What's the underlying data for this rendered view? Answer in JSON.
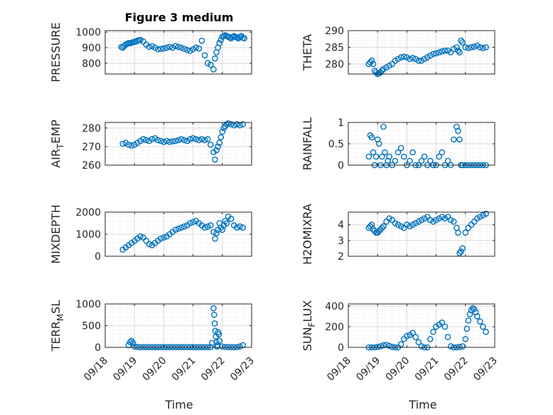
{
  "title": "Figure 3 medium",
  "marker_color": "#0072BD",
  "chart_data": [
    {
      "type": "scatter",
      "id": "pressure",
      "ylabel_parts": [
        "PRESSURE"
      ],
      "xlim": [
        0,
        5
      ],
      "ylim": [
        730,
        1010
      ],
      "yticks": [
        800,
        900,
        1000
      ],
      "x_ticks": [
        "09/18",
        "09/19",
        "09/20",
        "09/21",
        "09/22",
        "09/23"
      ],
      "show_x_ticks": false,
      "x": [
        0.55,
        0.6,
        0.65,
        0.7,
        0.75,
        0.8,
        0.85,
        0.9,
        0.95,
        1.0,
        1.05,
        1.1,
        1.15,
        1.2,
        1.3,
        1.4,
        1.5,
        1.6,
        1.7,
        1.8,
        1.9,
        2.0,
        2.1,
        2.2,
        2.3,
        2.4,
        2.5,
        2.6,
        2.7,
        2.8,
        2.9,
        3.0,
        3.1,
        3.2,
        3.3,
        3.4,
        3.5,
        3.6,
        3.7,
        3.75,
        3.8,
        3.85,
        3.9,
        3.95,
        4.0,
        4.05,
        4.1,
        4.15,
        4.2,
        4.25,
        4.3,
        4.35,
        4.4,
        4.45,
        4.5,
        4.55,
        4.6,
        4.65,
        4.7,
        4.75
      ],
      "y": [
        905,
        900,
        910,
        920,
        925,
        930,
        928,
        932,
        935,
        938,
        940,
        945,
        948,
        950,
        940,
        920,
        905,
        910,
        900,
        890,
        892,
        895,
        900,
        905,
        900,
        910,
        905,
        900,
        892,
        885,
        880,
        890,
        900,
        895,
        945,
        850,
        800,
        790,
        760,
        830,
        870,
        900,
        930,
        950,
        970,
        975,
        980,
        975,
        970,
        965,
        960,
        970,
        975,
        970,
        965,
        960,
        970,
        975,
        965,
        960
      ]
    },
    {
      "type": "scatter",
      "id": "theta",
      "ylabel_parts": [
        "THETA"
      ],
      "xlim": [
        0,
        5
      ],
      "ylim": [
        277,
        290
      ],
      "yticks": [
        280,
        285,
        290
      ],
      "x_ticks": [
        "09/18",
        "09/19",
        "09/20",
        "09/21",
        "09/22",
        "09/23"
      ],
      "show_x_ticks": false,
      "x": [
        0.7,
        0.75,
        0.8,
        0.85,
        0.9,
        0.95,
        1.0,
        1.05,
        1.1,
        1.15,
        1.2,
        1.3,
        1.4,
        1.5,
        1.6,
        1.7,
        1.8,
        1.9,
        2.0,
        2.1,
        2.2,
        2.3,
        2.4,
        2.5,
        2.6,
        2.7,
        2.8,
        2.9,
        3.0,
        3.1,
        3.2,
        3.3,
        3.4,
        3.5,
        3.6,
        3.7,
        3.75,
        3.8,
        3.85,
        3.9,
        4.0,
        4.1,
        4.2,
        4.3,
        4.4,
        4.5,
        4.6,
        4.7
      ],
      "y": [
        280,
        280.5,
        281,
        280,
        278,
        277.5,
        277,
        277.2,
        277.5,
        278,
        278.5,
        279,
        279.5,
        280,
        281,
        281.5,
        282,
        282.2,
        282,
        281.5,
        281.8,
        281.5,
        281,
        281,
        281.5,
        282,
        282.5,
        283,
        283.2,
        283.5,
        283.8,
        284,
        284,
        283.5,
        284.5,
        285,
        284,
        283.5,
        287,
        286.5,
        285,
        284.8,
        285,
        285.2,
        285.5,
        285,
        284.8,
        285
      ]
    },
    {
      "type": "scatter",
      "id": "air_temp",
      "ylabel_parts": [
        "AIR",
        "T",
        "EMP"
      ],
      "xlim": [
        0,
        5
      ],
      "ylim": [
        260,
        283
      ],
      "yticks": [
        260,
        270,
        280
      ],
      "x_ticks": [
        "09/18",
        "09/19",
        "09/20",
        "09/21",
        "09/22",
        "09/23"
      ],
      "show_x_ticks": false,
      "x": [
        0.6,
        0.7,
        0.8,
        0.9,
        1.0,
        1.1,
        1.2,
        1.3,
        1.4,
        1.5,
        1.6,
        1.7,
        1.8,
        1.9,
        2.0,
        2.1,
        2.2,
        2.3,
        2.4,
        2.5,
        2.6,
        2.7,
        2.8,
        2.9,
        3.0,
        3.1,
        3.2,
        3.3,
        3.4,
        3.5,
        3.6,
        3.7,
        3.75,
        3.8,
        3.85,
        3.9,
        3.95,
        4.0,
        4.05,
        4.1,
        4.15,
        4.2,
        4.3,
        4.4,
        4.5,
        4.6,
        4.7
      ],
      "y": [
        271.5,
        272,
        271,
        270.5,
        271,
        272,
        273,
        274,
        273.5,
        273,
        274,
        274.5,
        273.5,
        273,
        272.5,
        273,
        272.5,
        272.8,
        273,
        273.5,
        274,
        273.5,
        273,
        274,
        274.5,
        274,
        273.5,
        274,
        273.5,
        274,
        271,
        267,
        263,
        268,
        270,
        272,
        275,
        278,
        280,
        281,
        282,
        282.5,
        282,
        281.5,
        282,
        281.5,
        282
      ]
    },
    {
      "type": "scatter",
      "id": "rainfall",
      "ylabel_parts": [
        "RAINFALL"
      ],
      "xlim": [
        0,
        5
      ],
      "ylim": [
        0,
        1
      ],
      "yticks": [
        0,
        0.5,
        1
      ],
      "x_ticks": [
        "09/18",
        "09/19",
        "09/20",
        "09/21",
        "09/22",
        "09/23"
      ],
      "show_x_ticks": false,
      "x": [
        0.7,
        0.75,
        0.8,
        0.85,
        0.9,
        0.95,
        1.0,
        1.05,
        1.1,
        1.15,
        1.2,
        1.25,
        1.3,
        1.35,
        1.4,
        1.5,
        1.6,
        1.7,
        1.8,
        1.9,
        2.0,
        2.1,
        2.2,
        2.3,
        2.4,
        2.5,
        2.6,
        2.7,
        2.8,
        2.9,
        3.0,
        3.1,
        3.2,
        3.3,
        3.4,
        3.5,
        3.6,
        3.7,
        3.75,
        3.8,
        3.85,
        3.9,
        4.0,
        4.1,
        4.2,
        4.3,
        4.4,
        4.5,
        4.6,
        4.7
      ],
      "y": [
        0.2,
        0.7,
        0.65,
        0.3,
        0,
        0.2,
        0.6,
        0.5,
        0,
        0.2,
        0.9,
        0.3,
        0,
        0.1,
        0.2,
        0,
        0.1,
        0.3,
        0.4,
        0.2,
        0,
        0.1,
        0.3,
        0,
        0,
        0.1,
        0.2,
        0,
        0.1,
        0,
        0,
        0.2,
        0.3,
        0,
        0.1,
        0,
        0.6,
        0.9,
        0.8,
        0.6,
        0,
        0,
        0,
        0,
        0,
        0,
        0,
        0,
        0,
        0
      ]
    },
    {
      "type": "scatter",
      "id": "mixdepth",
      "ylabel_parts": [
        "MIXDEPTH"
      ],
      "xlim": [
        0,
        5
      ],
      "ylim": [
        0,
        2000
      ],
      "yticks": [
        0,
        1000,
        2000
      ],
      "x_ticks": [
        "09/18",
        "09/19",
        "09/20",
        "09/21",
        "09/22",
        "09/23"
      ],
      "show_x_ticks": false,
      "x": [
        0.6,
        0.7,
        0.8,
        0.9,
        1.0,
        1.1,
        1.2,
        1.3,
        1.4,
        1.5,
        1.6,
        1.7,
        1.8,
        1.9,
        2.0,
        2.1,
        2.2,
        2.3,
        2.4,
        2.5,
        2.6,
        2.7,
        2.8,
        2.9,
        3.0,
        3.1,
        3.2,
        3.3,
        3.4,
        3.5,
        3.6,
        3.7,
        3.75,
        3.8,
        3.85,
        3.9,
        3.95,
        4.0,
        4.05,
        4.1,
        4.15,
        4.2,
        4.3,
        4.4,
        4.5,
        4.6,
        4.7
      ],
      "y": [
        300,
        400,
        500,
        600,
        700,
        800,
        900,
        850,
        700,
        550,
        500,
        600,
        700,
        800,
        850,
        900,
        1000,
        1100,
        1200,
        1250,
        1300,
        1350,
        1400,
        1500,
        1550,
        1600,
        1500,
        1400,
        1300,
        1350,
        1400,
        1100,
        800,
        1050,
        1200,
        1500,
        1300,
        1200,
        1400,
        1600,
        1500,
        1800,
        1700,
        1400,
        1300,
        1350,
        1300
      ]
    },
    {
      "type": "scatter",
      "id": "h2omixra",
      "ylabel_parts": [
        "H2OMIXRA"
      ],
      "xlim": [
        0,
        5
      ],
      "ylim": [
        2,
        4.8
      ],
      "yticks": [
        2,
        3,
        4
      ],
      "x_ticks": [
        "09/18",
        "09/19",
        "09/20",
        "09/21",
        "09/22",
        "09/23"
      ],
      "show_x_ticks": false,
      "x": [
        0.7,
        0.75,
        0.8,
        0.85,
        0.9,
        0.95,
        1.0,
        1.05,
        1.1,
        1.15,
        1.2,
        1.3,
        1.4,
        1.5,
        1.6,
        1.7,
        1.8,
        1.9,
        2.0,
        2.1,
        2.2,
        2.3,
        2.4,
        2.5,
        2.6,
        2.7,
        2.8,
        2.9,
        3.0,
        3.1,
        3.2,
        3.3,
        3.4,
        3.5,
        3.6,
        3.7,
        3.75,
        3.8,
        3.85,
        3.9,
        4.0,
        4.1,
        4.2,
        4.3,
        4.4,
        4.5,
        4.6,
        4.7
      ],
      "y": [
        3.8,
        3.9,
        4.0,
        3.7,
        3.6,
        3.5,
        3.5,
        3.6,
        3.7,
        3.8,
        3.9,
        4.2,
        4.4,
        4.3,
        4.1,
        4.0,
        3.9,
        3.8,
        4.0,
        3.9,
        4.0,
        4.1,
        4.2,
        4.3,
        4.4,
        4.5,
        4.3,
        4.2,
        4.3,
        4.4,
        4.5,
        4.4,
        4.5,
        4.3,
        4.2,
        3.8,
        3.5,
        2.2,
        2.3,
        2.5,
        3.5,
        3.8,
        4.0,
        4.2,
        4.4,
        4.5,
        4.6,
        4.7
      ]
    },
    {
      "type": "scatter",
      "id": "terr_msl",
      "ylabel_parts": [
        "TERR",
        "M",
        "SL"
      ],
      "xlim": [
        0,
        5
      ],
      "ylim": [
        0,
        1000
      ],
      "yticks": [
        0,
        500,
        1000
      ],
      "x_ticks": [
        "09/18",
        "09/19",
        "09/20",
        "09/21",
        "09/22",
        "09/23"
      ],
      "show_x_ticks": true,
      "x": [
        0.8,
        0.85,
        0.9,
        0.95,
        1.0,
        1.1,
        1.2,
        1.3,
        1.4,
        1.5,
        1.6,
        1.7,
        1.8,
        1.9,
        2.0,
        2.1,
        2.2,
        2.3,
        2.4,
        2.5,
        2.6,
        2.7,
        2.8,
        2.9,
        3.0,
        3.1,
        3.2,
        3.3,
        3.4,
        3.5,
        3.6,
        3.65,
        3.7,
        3.72,
        3.74,
        3.76,
        3.78,
        3.8,
        3.82,
        3.84,
        3.86,
        3.88,
        3.9,
        4.0,
        4.1,
        4.2,
        4.3,
        4.4,
        4.5,
        4.6,
        4.7
      ],
      "y": [
        50,
        120,
        150,
        100,
        20,
        10,
        5,
        5,
        5,
        5,
        5,
        5,
        5,
        5,
        5,
        5,
        5,
        5,
        5,
        5,
        5,
        5,
        5,
        5,
        5,
        5,
        5,
        5,
        5,
        5,
        5,
        100,
        900,
        750,
        550,
        380,
        250,
        120,
        20,
        50,
        350,
        300,
        150,
        20,
        10,
        5,
        5,
        5,
        5,
        20,
        50
      ]
    },
    {
      "type": "scatter",
      "id": "sun_flux",
      "ylabel_parts": [
        "SUN",
        "F",
        "LUX"
      ],
      "xlim": [
        0,
        5
      ],
      "ylim": [
        0,
        420
      ],
      "yticks": [
        0,
        200,
        400
      ],
      "x_ticks": [
        "09/18",
        "09/19",
        "09/20",
        "09/21",
        "09/22",
        "09/23"
      ],
      "show_x_ticks": true,
      "x": [
        0.7,
        0.8,
        0.9,
        1.0,
        1.1,
        1.2,
        1.3,
        1.4,
        1.5,
        1.6,
        1.7,
        1.8,
        1.9,
        2.0,
        2.1,
        2.2,
        2.3,
        2.4,
        2.5,
        2.6,
        2.7,
        2.8,
        2.9,
        3.0,
        3.1,
        3.2,
        3.3,
        3.4,
        3.5,
        3.6,
        3.7,
        3.8,
        3.9,
        4.0,
        4.05,
        4.1,
        4.15,
        4.2,
        4.25,
        4.3,
        4.35,
        4.4,
        4.5,
        4.6,
        4.7
      ],
      "y": [
        0,
        0,
        0,
        5,
        10,
        20,
        25,
        15,
        5,
        0,
        0,
        30,
        80,
        110,
        120,
        140,
        100,
        50,
        10,
        0,
        0,
        80,
        150,
        200,
        220,
        240,
        200,
        100,
        10,
        0,
        0,
        5,
        10,
        80,
        180,
        260,
        320,
        360,
        380,
        370,
        340,
        300,
        250,
        200,
        150
      ]
    }
  ],
  "xlabel": "Time"
}
